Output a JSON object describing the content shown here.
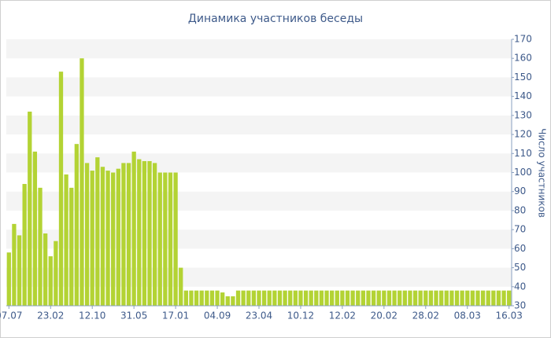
{
  "chart_data": {
    "type": "bar",
    "title": "Динамика участников беседы",
    "y_label": "Число участников",
    "categories": [
      "07.07",
      null,
      null,
      null,
      null,
      null,
      null,
      null,
      "23.02",
      null,
      null,
      null,
      null,
      null,
      null,
      null,
      "12.10",
      null,
      null,
      null,
      null,
      null,
      null,
      null,
      "31.05",
      null,
      null,
      null,
      null,
      null,
      null,
      null,
      "17.01",
      null,
      null,
      null,
      null,
      null,
      null,
      null,
      "04.09",
      null,
      null,
      null,
      null,
      null,
      null,
      null,
      "23.04",
      null,
      null,
      null,
      null,
      null,
      null,
      null,
      "10.12",
      null,
      null,
      null,
      null,
      null,
      null,
      null,
      "12.02",
      null,
      null,
      null,
      null,
      null,
      null,
      null,
      "20.02",
      null,
      null,
      null,
      null,
      null,
      null,
      null,
      "28.02",
      null,
      null,
      null,
      null,
      null,
      null,
      null,
      "08.03",
      null,
      null,
      null,
      null,
      null,
      null,
      null,
      "16.03"
    ],
    "values": [
      58,
      73,
      67,
      94,
      132,
      111,
      92,
      68,
      56,
      64,
      153,
      99,
      92,
      115,
      160,
      105,
      101,
      108,
      103,
      101,
      100,
      102,
      105,
      105,
      111,
      107,
      106,
      106,
      105,
      100,
      100,
      100,
      100,
      50,
      38,
      38,
      38,
      38,
      38,
      38,
      38,
      37,
      35,
      35,
      38,
      38,
      38,
      38,
      38,
      38,
      38,
      38,
      38,
      38,
      38,
      38,
      38,
      38,
      38,
      38,
      38,
      38,
      38,
      38,
      38,
      38,
      38,
      38,
      38,
      38,
      38,
      38,
      38,
      38,
      38,
      38,
      38,
      38,
      38,
      38,
      38,
      38,
      38,
      38,
      38,
      38,
      38,
      38,
      38,
      38,
      38,
      38,
      38,
      38,
      38,
      38,
      38
    ],
    "color": "#b3d334",
    "ylim": [
      30,
      170
    ],
    "yticks": [
      30,
      40,
      50,
      60,
      70,
      80,
      90,
      100,
      110,
      120,
      130,
      140,
      150,
      160,
      170
    ],
    "grid": true
  }
}
